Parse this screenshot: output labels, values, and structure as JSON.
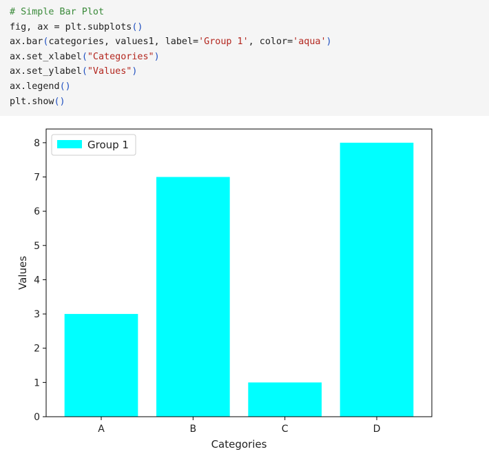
{
  "code": {
    "lines": [
      [
        {
          "t": "# Simple Bar Plot",
          "c": "comment"
        }
      ],
      [
        {
          "t": "fig, ax = plt.subplots",
          "c": "kw"
        },
        {
          "t": "()",
          "c": "paren"
        }
      ],
      [
        {
          "t": "ax.bar",
          "c": "kw"
        },
        {
          "t": "(",
          "c": "paren"
        },
        {
          "t": "categories, values1, label=",
          "c": "kw"
        },
        {
          "t": "'Group 1'",
          "c": "string"
        },
        {
          "t": ", color=",
          "c": "kw"
        },
        {
          "t": "'aqua'",
          "c": "string"
        },
        {
          "t": ")",
          "c": "paren"
        }
      ],
      [
        {
          "t": "ax.set_xlabel",
          "c": "kw"
        },
        {
          "t": "(",
          "c": "paren"
        },
        {
          "t": "\"Categories\"",
          "c": "string"
        },
        {
          "t": ")",
          "c": "paren"
        }
      ],
      [
        {
          "t": "ax.set_ylabel",
          "c": "kw"
        },
        {
          "t": "(",
          "c": "paren"
        },
        {
          "t": "\"Values\"",
          "c": "string"
        },
        {
          "t": ")",
          "c": "paren"
        }
      ],
      [
        {
          "t": "ax.legend",
          "c": "kw"
        },
        {
          "t": "()",
          "c": "paren"
        }
      ],
      [
        {
          "t": "plt.show",
          "c": "kw"
        },
        {
          "t": "()",
          "c": "paren"
        }
      ]
    ]
  },
  "colors": {
    "bar": "#00ffff",
    "axis": "#000000",
    "text": "#222222"
  },
  "chart_data": {
    "type": "bar",
    "categories": [
      "A",
      "B",
      "C",
      "D"
    ],
    "series": [
      {
        "name": "Group 1",
        "values": [
          3,
          7,
          1,
          8
        ],
        "color": "#00ffff"
      }
    ],
    "title": "",
    "xlabel": "Categories",
    "ylabel": "Values",
    "ylim": [
      0,
      8.4
    ],
    "yticks": [
      0,
      1,
      2,
      3,
      4,
      5,
      6,
      7,
      8
    ],
    "legend": "top-left",
    "grid": false
  }
}
